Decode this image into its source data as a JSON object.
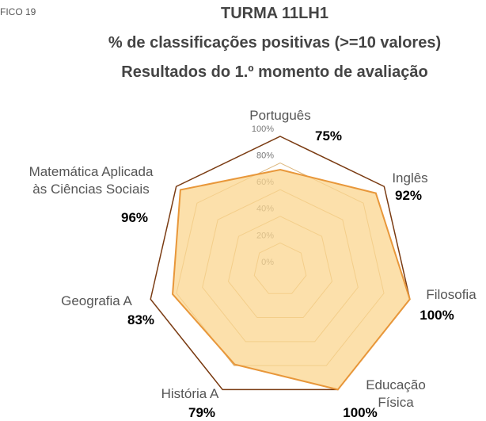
{
  "chart_data": {
    "type": "radar",
    "annotation": "FICO 19",
    "title": "TURMA 11LH1",
    "subtitle": [
      "% de classificações positivas (>=10 valores)",
      "Resultados do 1.º momento de avaliação"
    ],
    "categories": [
      "Português",
      "Inglês",
      "Filosofia",
      "Educação Física",
      "História A",
      "Geografia A",
      "Matemática Aplicada\nàs Ciências Sociais"
    ],
    "series": [
      {
        "name": "11LH1",
        "color": "#e8973a",
        "fill": "#fbd58f",
        "values": [
          75,
          92,
          100,
          100,
          79,
          83,
          96
        ],
        "value_labels": [
          "75%",
          "92%",
          "100%",
          "100%",
          "79%",
          "83%",
          "96%"
        ]
      }
    ],
    "ylim": [
      0,
      100
    ],
    "yticks": [
      {
        "value": 0,
        "label": "0%"
      },
      {
        "value": 20,
        "label": "20%"
      },
      {
        "value": 40,
        "label": "40%"
      },
      {
        "value": 60,
        "label": "60%"
      },
      {
        "value": 80,
        "label": "80%"
      },
      {
        "value": 100,
        "label": "100%"
      }
    ],
    "grid": true
  }
}
